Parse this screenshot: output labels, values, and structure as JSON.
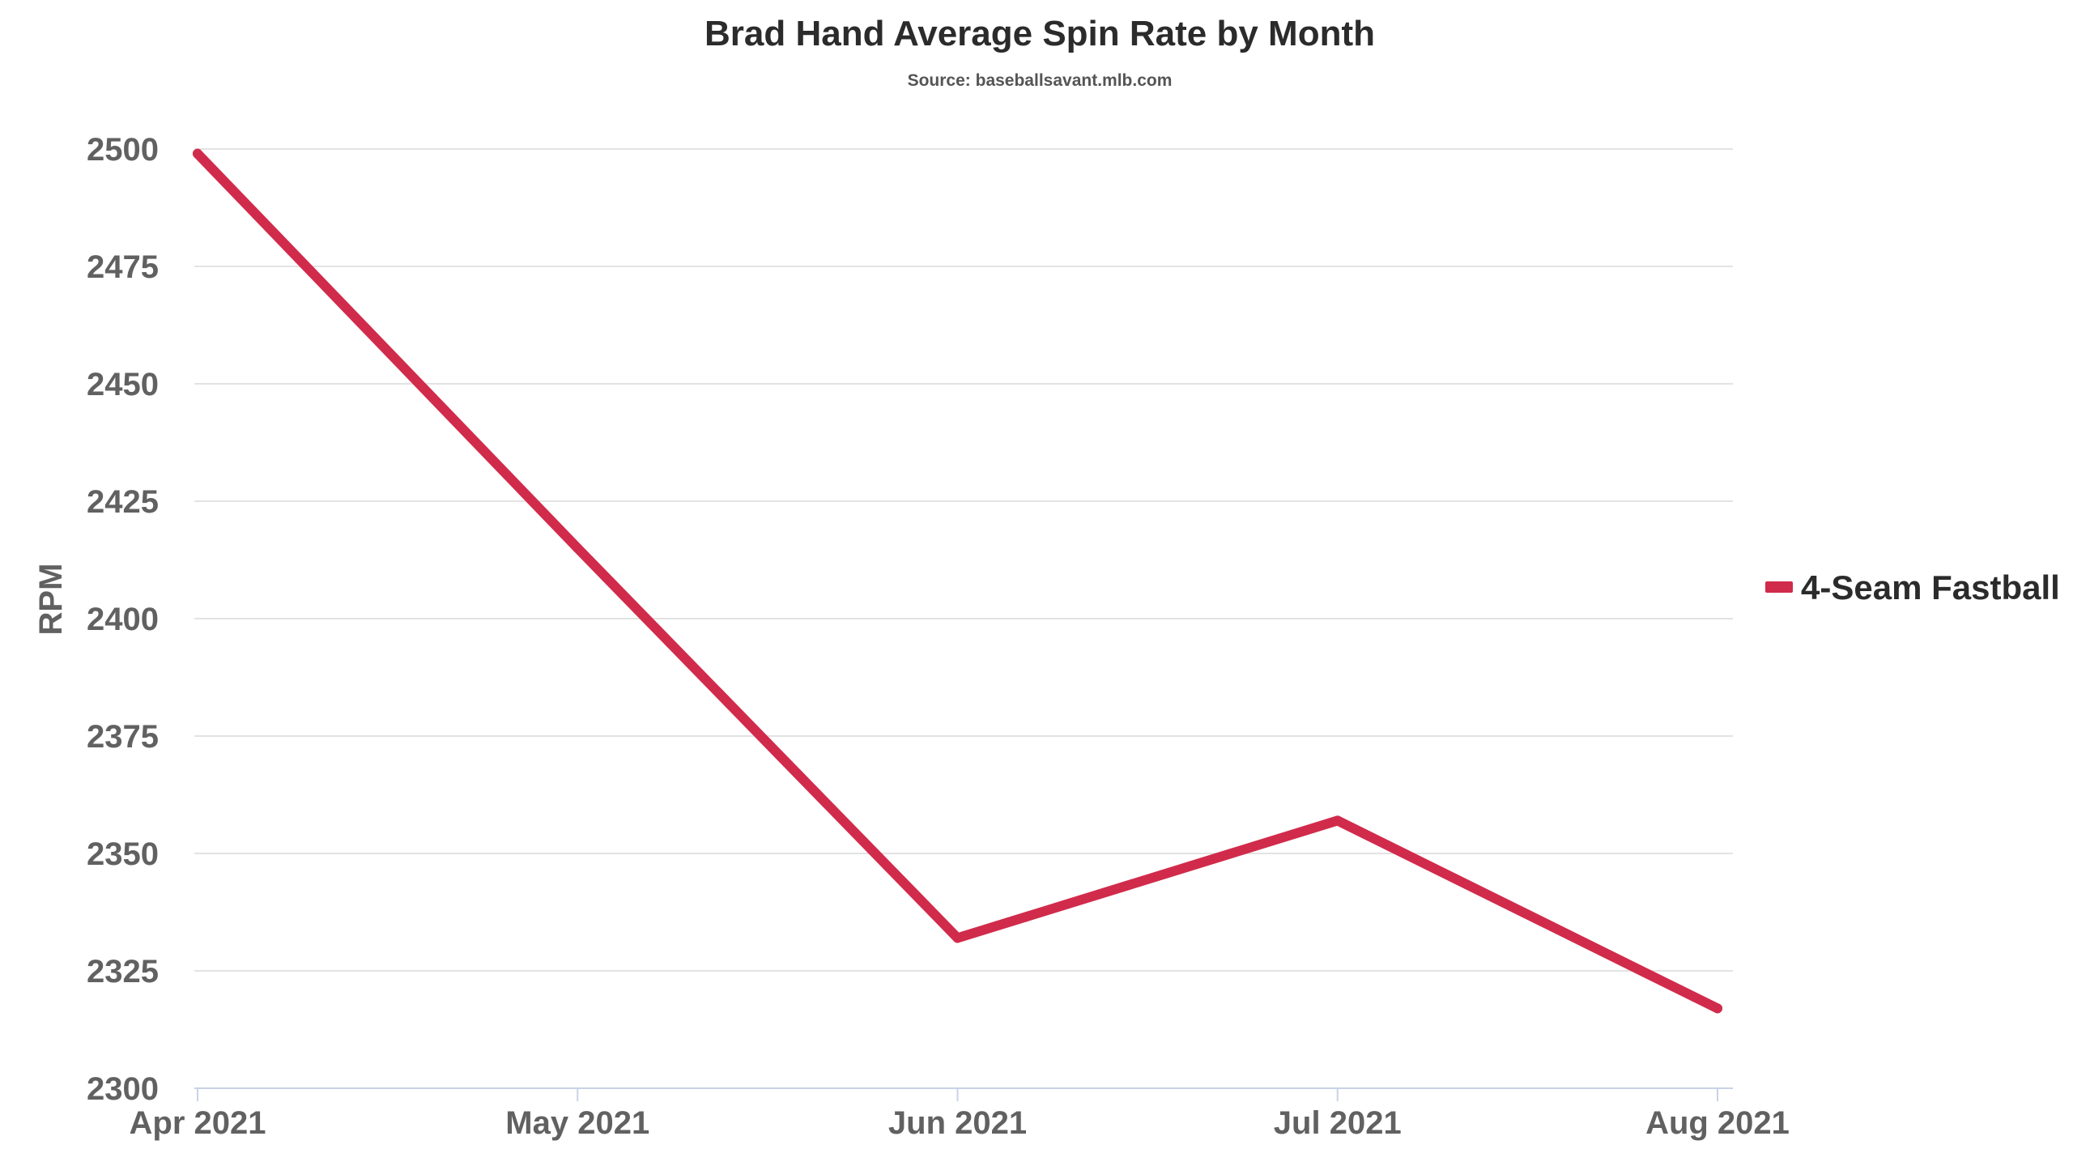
{
  "chart_data": {
    "type": "line",
    "title": "Brad Hand Average Spin Rate by Month",
    "subtitle": "Source: baseballsavant.mlb.com",
    "xlabel": "",
    "ylabel": "RPM",
    "categories": [
      "Apr 2021",
      "May 2021",
      "Jun 2021",
      "Jul 2021",
      "Aug 2021"
    ],
    "series": [
      {
        "name": "4-Seam Fastball",
        "color": "#d12b4b",
        "values": [
          2499,
          2415,
          2332,
          2357,
          2317
        ]
      }
    ],
    "ylim": [
      2300,
      2500
    ],
    "yticks": [
      2300,
      2325,
      2350,
      2375,
      2400,
      2425,
      2450,
      2475,
      2500
    ],
    "grid": true,
    "legend_position": "right"
  }
}
